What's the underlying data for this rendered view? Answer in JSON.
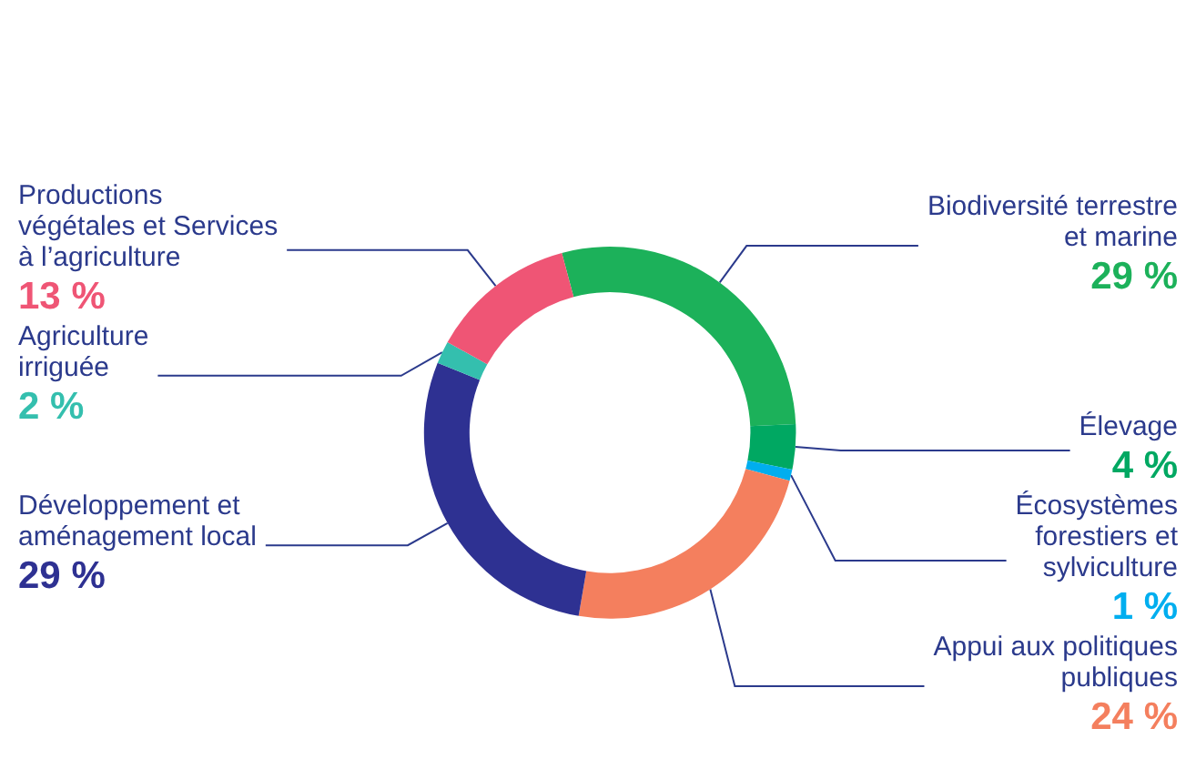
{
  "chart_data": {
    "type": "donut",
    "categories": [
      "Biodiversité terrestre\net marine",
      "Élevage",
      "Écosystèmes\nforestiers et\nsylviculture",
      "Appui aux politiques\npubliques",
      "Développement et\naménagement local",
      "Agriculture\nirriguée",
      "Productions\nvégétales et Services\nà l’agriculture"
    ],
    "values": [
      29,
      4,
      1,
      24,
      29,
      2,
      13
    ],
    "value_labels": [
      "29 %",
      "4 %",
      "1 %",
      "24 %",
      "29 %",
      "2 %",
      "13 %"
    ],
    "colors": [
      "#1cb15a",
      "#00a862",
      "#00aeef",
      "#f47f5e",
      "#2e3192",
      "#34bfae",
      "#ef5575"
    ],
    "legend": false
  }
}
